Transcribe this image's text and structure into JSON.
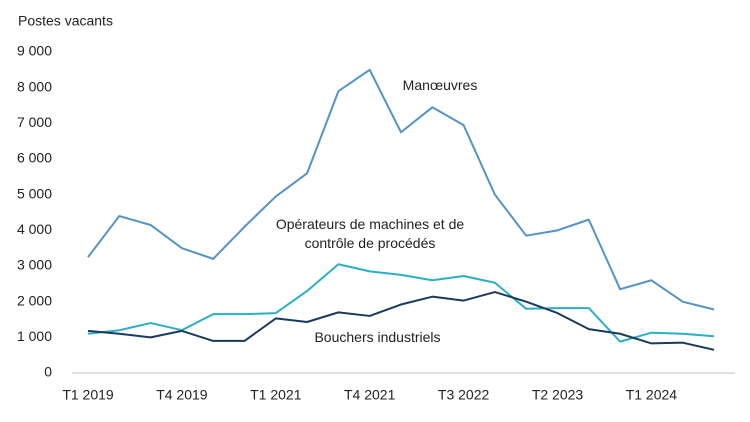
{
  "chart_data": {
    "type": "line",
    "y_label": "Postes vacants",
    "categories": [
      "T1 2019",
      null,
      null,
      "T4 2019",
      null,
      null,
      "T1 2021",
      null,
      null,
      "T4 2021",
      null,
      null,
      "T3 2022",
      null,
      null,
      "T2 2023",
      null,
      null,
      "T1 2024",
      null,
      null
    ],
    "series": [
      {
        "name": "Manœuvres",
        "color": "#5393c8",
        "values": [
          3250,
          4400,
          4150,
          3500,
          3200,
          4100,
          4950,
          5600,
          7900,
          8500,
          6750,
          7450,
          6950,
          5000,
          3850,
          4000,
          4300,
          2350,
          2600,
          2000,
          1780
        ]
      },
      {
        "name": "Opérateurs de machines et de contrôle de procédés",
        "color": "#2aafc6",
        "values": [
          1100,
          1200,
          1400,
          1200,
          1650,
          1650,
          1680,
          2300,
          3050,
          2850,
          2750,
          2600,
          2720,
          2530,
          1800,
          1820,
          1820,
          880,
          1130,
          1100,
          1030
        ]
      },
      {
        "name": "Bouchers industriels",
        "color": "#1b3a5c",
        "values": [
          1180,
          1100,
          1000,
          1180,
          900,
          900,
          1530,
          1430,
          1700,
          1600,
          1920,
          2140,
          2030,
          2270,
          2000,
          1680,
          1230,
          1100,
          830,
          850,
          650
        ]
      }
    ],
    "ylim": [
      0,
      9000
    ],
    "yticks": [
      0,
      {
        "value": 1000,
        "label": "1 000"
      },
      {
        "value": 2000,
        "label": "2 000"
      },
      {
        "value": 3000,
        "label": "3 000"
      },
      {
        "value": 4000,
        "label": "4 000"
      },
      {
        "value": 5000,
        "label": "5 000"
      },
      {
        "value": 6000,
        "label": "6 000"
      },
      {
        "value": 7000,
        "label": "7 000"
      },
      {
        "value": 8000,
        "label": "8 000"
      },
      {
        "value": 9000,
        "label": "9 000"
      }
    ],
    "grid": false
  }
}
